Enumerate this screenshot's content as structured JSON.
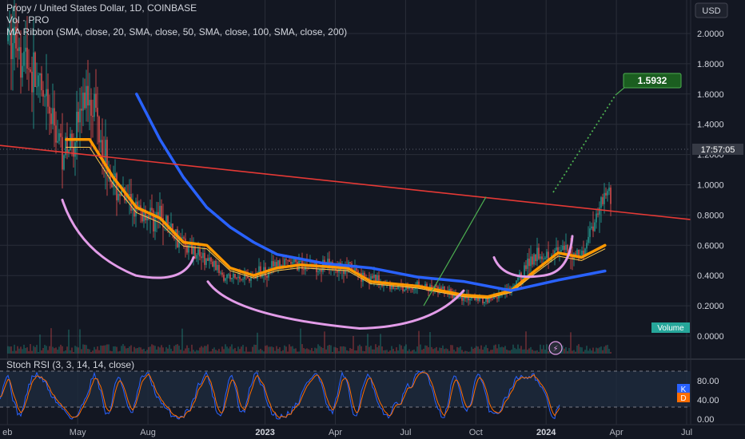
{
  "legend": {
    "title": "Propy / United States Dollar, 1D, COINBASE",
    "vol": "Vol · PRO",
    "ma_ribbon": "MA Ribbon (SMA, close, 20, SMA, close, 50, SMA, close, 100, SMA, close, 200)"
  },
  "currency_button": "USD",
  "price_axis": {
    "ticks": [
      "2.0000",
      "1.8000",
      "1.6000",
      "1.4000",
      "1.2000",
      "1.0000",
      "0.8000",
      "0.6000",
      "0.4000",
      "0.2000",
      "0.0000"
    ],
    "countdown": "17:57:05",
    "volume_tag": "Volume"
  },
  "target_label": "1.5932",
  "stoch_rsi": {
    "legend": "Stoch RSI (3, 3, 14, 14, close)",
    "ticks": [
      "80.00",
      "40.00",
      "0.00"
    ],
    "k_label": "K",
    "d_label": "D"
  },
  "time_axis": [
    "eb",
    "May",
    "Aug",
    "2023",
    "Apr",
    "Jul",
    "Oct",
    "2024",
    "Apr",
    "Jul"
  ],
  "colors": {
    "background": "#131722",
    "grid": "#2a2e39",
    "candle_up": "#26a69a",
    "candle_down": "#ef5350",
    "ma20": "#ff9800",
    "ma50": "#ffc94d",
    "ma100": "#2962ff",
    "ma200": "#2979ff",
    "trendline": "#e53935",
    "cup_drawing": "#e29ce8",
    "green_line": "#4caf50",
    "stoch_k": "#2962ff",
    "stoch_d": "#ff6d00",
    "target_box": "#2e7d32"
  },
  "chart_data": {
    "type": "candlestick",
    "symbol": "Propy / United States Dollar",
    "interval": "1D",
    "exchange": "COINBASE",
    "y_range": [
      0,
      2.1
    ],
    "close_series": [
      {
        "date": "2022-02",
        "value": 1.95
      },
      {
        "date": "2022-03",
        "value": 1.55
      },
      {
        "date": "2022-04",
        "value": 1.2
      },
      {
        "date": "2022-05",
        "value": 1.65
      },
      {
        "date": "2022-06",
        "value": 1.0
      },
      {
        "date": "2022-07",
        "value": 0.82
      },
      {
        "date": "2022-08",
        "value": 0.78
      },
      {
        "date": "2022-09",
        "value": 0.62
      },
      {
        "date": "2022-10",
        "value": 0.5
      },
      {
        "date": "2022-11",
        "value": 0.38
      },
      {
        "date": "2022-12",
        "value": 0.4
      },
      {
        "date": "2023-01",
        "value": 0.47
      },
      {
        "date": "2023-02",
        "value": 0.48
      },
      {
        "date": "2023-03",
        "value": 0.46
      },
      {
        "date": "2023-04",
        "value": 0.45
      },
      {
        "date": "2023-05",
        "value": 0.38
      },
      {
        "date": "2023-06",
        "value": 0.32
      },
      {
        "date": "2023-07",
        "value": 0.33
      },
      {
        "date": "2023-08",
        "value": 0.3
      },
      {
        "date": "2023-09",
        "value": 0.25
      },
      {
        "date": "2023-10",
        "value": 0.24
      },
      {
        "date": "2023-11",
        "value": 0.3
      },
      {
        "date": "2023-12",
        "value": 0.55
      },
      {
        "date": "2024-01",
        "value": 0.55
      },
      {
        "date": "2024-02",
        "value": 0.55
      },
      {
        "date": "2024-03",
        "value": 0.95
      }
    ],
    "ma20_series": [
      {
        "date": "2022-04",
        "value": 1.3
      },
      {
        "date": "2022-05",
        "value": 1.3
      },
      {
        "date": "2022-06",
        "value": 1.05
      },
      {
        "date": "2022-07",
        "value": 0.85
      },
      {
        "date": "2022-08",
        "value": 0.78
      },
      {
        "date": "2022-09",
        "value": 0.62
      },
      {
        "date": "2022-10",
        "value": 0.6
      },
      {
        "date": "2022-11",
        "value": 0.45
      },
      {
        "date": "2022-12",
        "value": 0.4
      },
      {
        "date": "2023-01",
        "value": 0.45
      },
      {
        "date": "2023-02",
        "value": 0.47
      },
      {
        "date": "2023-04",
        "value": 0.45
      },
      {
        "date": "2023-05",
        "value": 0.36
      },
      {
        "date": "2023-07",
        "value": 0.33
      },
      {
        "date": "2023-09",
        "value": 0.27
      },
      {
        "date": "2023-10",
        "value": 0.26
      },
      {
        "date": "2023-11",
        "value": 0.3
      },
      {
        "date": "2023-12",
        "value": 0.43
      },
      {
        "date": "2024-01",
        "value": 0.55
      },
      {
        "date": "2024-02",
        "value": 0.52
      },
      {
        "date": "2024-03",
        "value": 0.6
      }
    ],
    "ma100_series": [
      {
        "date": "2022-07",
        "value": 1.6
      },
      {
        "date": "2022-08",
        "value": 1.3
      },
      {
        "date": "2022-09",
        "value": 1.05
      },
      {
        "date": "2022-10",
        "value": 0.85
      },
      {
        "date": "2022-11",
        "value": 0.72
      },
      {
        "date": "2022-12",
        "value": 0.62
      },
      {
        "date": "2023-01",
        "value": 0.54
      },
      {
        "date": "2023-03",
        "value": 0.48
      },
      {
        "date": "2023-05",
        "value": 0.45
      },
      {
        "date": "2023-07",
        "value": 0.39
      },
      {
        "date": "2023-09",
        "value": 0.36
      },
      {
        "date": "2023-11",
        "value": 0.3
      },
      {
        "date": "2024-01",
        "value": 0.37
      },
      {
        "date": "2024-03",
        "value": 0.43
      }
    ],
    "target_price": 1.5932,
    "stoch_rsi_levels": [
      80,
      20
    ],
    "stoch_rsi_range": [
      0,
      100
    ]
  }
}
